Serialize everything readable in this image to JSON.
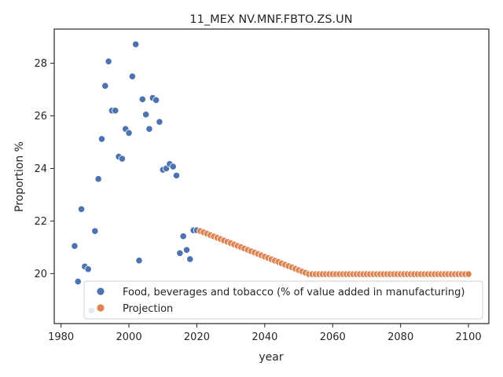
{
  "chart_data": {
    "type": "scatter",
    "title": "11_MEX NV.MNF.FBTO.ZS.UN",
    "xlabel": "year",
    "ylabel": "Proportion %",
    "xlim": [
      1978,
      2106
    ],
    "ylim": [
      18.1,
      29.3
    ],
    "xticks": [
      1980,
      2000,
      2020,
      2040,
      2060,
      2080,
      2100
    ],
    "yticks": [
      20,
      22,
      24,
      26,
      28
    ],
    "grid": false,
    "legend_position": "lower-right",
    "series": [
      {
        "name": "Food, beverages and tobacco (% of value added in manufacturing)",
        "color": "#4c72b0",
        "points": [
          [
            1984,
            21.05
          ],
          [
            1985,
            19.7
          ],
          [
            1986,
            22.45
          ],
          [
            1987,
            20.27
          ],
          [
            1988,
            20.17
          ],
          [
            1989,
            18.6
          ],
          [
            1990,
            21.62
          ],
          [
            1991,
            23.6
          ],
          [
            1992,
            25.12
          ],
          [
            1993,
            27.14
          ],
          [
            1994,
            28.07
          ],
          [
            1995,
            26.2
          ],
          [
            1996,
            26.2
          ],
          [
            1997,
            24.45
          ],
          [
            1998,
            24.37
          ],
          [
            1999,
            25.5
          ],
          [
            2000,
            25.35
          ],
          [
            2001,
            27.5
          ],
          [
            2002,
            28.72
          ],
          [
            2003,
            20.5
          ],
          [
            2004,
            26.63
          ],
          [
            2005,
            26.05
          ],
          [
            2006,
            25.5
          ],
          [
            2007,
            26.68
          ],
          [
            2008,
            26.6
          ],
          [
            2009,
            25.77
          ],
          [
            2010,
            23.95
          ],
          [
            2011,
            24.0
          ],
          [
            2012,
            24.17
          ],
          [
            2013,
            24.07
          ],
          [
            2014,
            23.73
          ],
          [
            2015,
            20.78
          ],
          [
            2016,
            21.42
          ],
          [
            2017,
            20.9
          ],
          [
            2018,
            20.55
          ],
          [
            2019,
            21.65
          ],
          [
            2020,
            21.65
          ]
        ]
      },
      {
        "name": "Projection",
        "color": "#dd8452",
        "x_start": 2021,
        "x_end": 2100,
        "y_start": 21.62,
        "plateau_year": 2053,
        "plateau_value": 19.98
      }
    ]
  }
}
